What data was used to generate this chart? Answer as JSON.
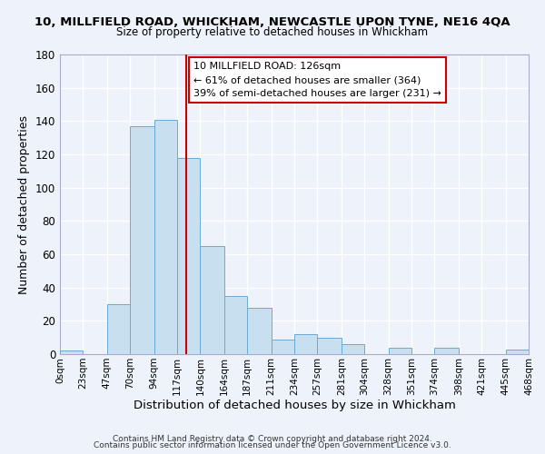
{
  "title_main": "10, MILLFIELD ROAD, WHICKHAM, NEWCASTLE UPON TYNE, NE16 4QA",
  "title_sub": "Size of property relative to detached houses in Whickham",
  "xlabel": "Distribution of detached houses by size in Whickham",
  "ylabel": "Number of detached properties",
  "bar_edges": [
    0,
    23,
    47,
    70,
    94,
    117,
    140,
    164,
    187,
    211,
    234,
    257,
    281,
    304,
    328,
    351,
    374,
    398,
    421,
    445,
    468
  ],
  "bar_heights": [
    2,
    0,
    30,
    137,
    141,
    118,
    65,
    35,
    28,
    9,
    12,
    10,
    6,
    0,
    4,
    0,
    4,
    0,
    0,
    3
  ],
  "bar_color": "#c8dff0",
  "bar_edgecolor": "#6aaad4",
  "property_line_x": 126,
  "property_line_color": "#cc0000",
  "ylim": [
    0,
    180
  ],
  "yticks": [
    0,
    20,
    40,
    60,
    80,
    100,
    120,
    140,
    160,
    180
  ],
  "xtick_labels": [
    "0sqm",
    "23sqm",
    "47sqm",
    "70sqm",
    "94sqm",
    "117sqm",
    "140sqm",
    "164sqm",
    "187sqm",
    "211sqm",
    "234sqm",
    "257sqm",
    "281sqm",
    "304sqm",
    "328sqm",
    "351sqm",
    "374sqm",
    "398sqm",
    "421sqm",
    "445sqm",
    "468sqm"
  ],
  "annotation_text": "10 MILLFIELD ROAD: 126sqm\n← 61% of detached houses are smaller (364)\n39% of semi-detached houses are larger (231) →",
  "annotation_box_edgecolor": "#cc0000",
  "annotation_box_facecolor": "#ffffff",
  "footer_line1": "Contains HM Land Registry data © Crown copyright and database right 2024.",
  "footer_line2": "Contains public sector information licensed under the Open Government Licence v3.0.",
  "background_color": "#eef2fa",
  "grid_color": "#ffffff",
  "fig_width": 6.0,
  "fig_height": 5.0
}
